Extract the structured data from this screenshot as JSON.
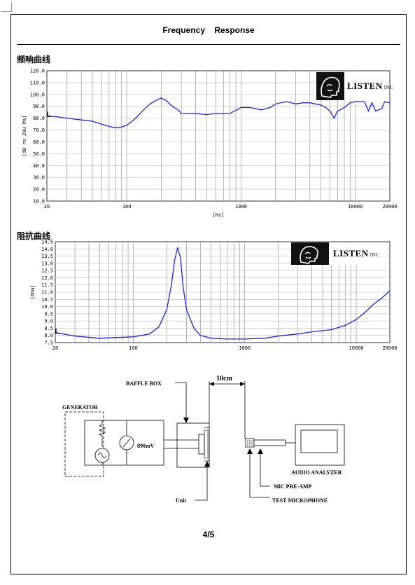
{
  "document": {
    "title": "Frequency Response",
    "page_number": "4/5"
  },
  "logos": {
    "brand": "LISTEN",
    "suffix": "INC",
    "icon": "head-profile-icon"
  },
  "chart_data": [
    {
      "type": "line",
      "title": "频响曲线",
      "xlabel": "[Hz]",
      "ylabel": "[dB re 20u Pa]",
      "xscale": "log",
      "xlim": [
        20,
        20000
      ],
      "ylim": [
        10,
        120
      ],
      "xticks": [
        "20",
        "100",
        "1000",
        "10000",
        "20000"
      ],
      "yticks": [
        "120.0",
        "110.0",
        "100.0",
        "90.0",
        "80.0",
        "70.0",
        "60.0",
        "50.0",
        "40.0",
        "30.0",
        "20.0",
        "10.0"
      ],
      "grid": true,
      "color": "#2222dd",
      "x": [
        20,
        25,
        30,
        40,
        50,
        60,
        70,
        80,
        90,
        100,
        120,
        140,
        160,
        180,
        200,
        220,
        250,
        280,
        300,
        350,
        400,
        500,
        600,
        700,
        800,
        1000,
        1200,
        1500,
        1800,
        2000,
        2500,
        3000,
        3500,
        4000,
        5000,
        5500,
        6000,
        6500,
        7000,
        8000,
        9000,
        10000,
        12000,
        13000,
        14000,
        15000,
        17000,
        18000,
        20000
      ],
      "y": [
        82,
        81,
        80,
        78.5,
        77.5,
        75,
        73,
        72,
        72.5,
        74,
        80,
        87,
        92,
        95,
        97,
        95,
        90,
        87,
        84,
        84,
        84,
        83,
        84,
        84,
        84,
        89,
        89,
        87,
        89,
        92,
        94,
        92,
        93,
        93,
        91,
        89,
        86,
        80,
        86,
        89,
        93,
        94,
        94,
        86,
        93,
        86,
        88,
        94,
        93
      ]
    },
    {
      "type": "line",
      "title": "阻抗曲线",
      "xlabel": "",
      "ylabel": "[Ohm]",
      "xscale": "log",
      "xlim": [
        20,
        20000
      ],
      "ylim": [
        7.5,
        14.5
      ],
      "xticks": [
        "20",
        "100",
        "1000",
        "10000",
        "20000"
      ],
      "yticks": [
        "14.5",
        "14.0",
        "13.5",
        "13.0",
        "12.5",
        "12.0",
        "11.5",
        "11.0",
        "10.5",
        "10.0",
        "9.5",
        "9.0",
        "8.5",
        "8.0",
        "7.5"
      ],
      "grid": true,
      "color": "#2222dd",
      "x": [
        20,
        30,
        50,
        70,
        100,
        140,
        170,
        200,
        220,
        235,
        250,
        265,
        280,
        300,
        350,
        400,
        500,
        700,
        1000,
        1500,
        2000,
        3000,
        4000,
        6000,
        8000,
        10000,
        12000,
        14000,
        17000,
        20000
      ],
      "y": [
        8.2,
        7.95,
        7.8,
        7.85,
        7.9,
        8.1,
        8.6,
        9.8,
        11.5,
        13.2,
        14.1,
        13.4,
        11.4,
        9.8,
        8.5,
        8.0,
        7.8,
        7.75,
        7.75,
        7.8,
        7.95,
        8.1,
        8.25,
        8.4,
        8.7,
        9.1,
        9.6,
        10.1,
        10.6,
        11.1
      ]
    }
  ],
  "diagram": {
    "generator_label": "GENERATOR",
    "baffle_box_label": "BAFFLE BOX",
    "distance_label": "10cm",
    "voltage_label": "890mV",
    "unit_label": "Unit",
    "analyzer_label": "AUDIO ANALYZER",
    "preamp_label": "MiC PRE-AMP",
    "microphone_label": "TEST MICROPHONE"
  }
}
